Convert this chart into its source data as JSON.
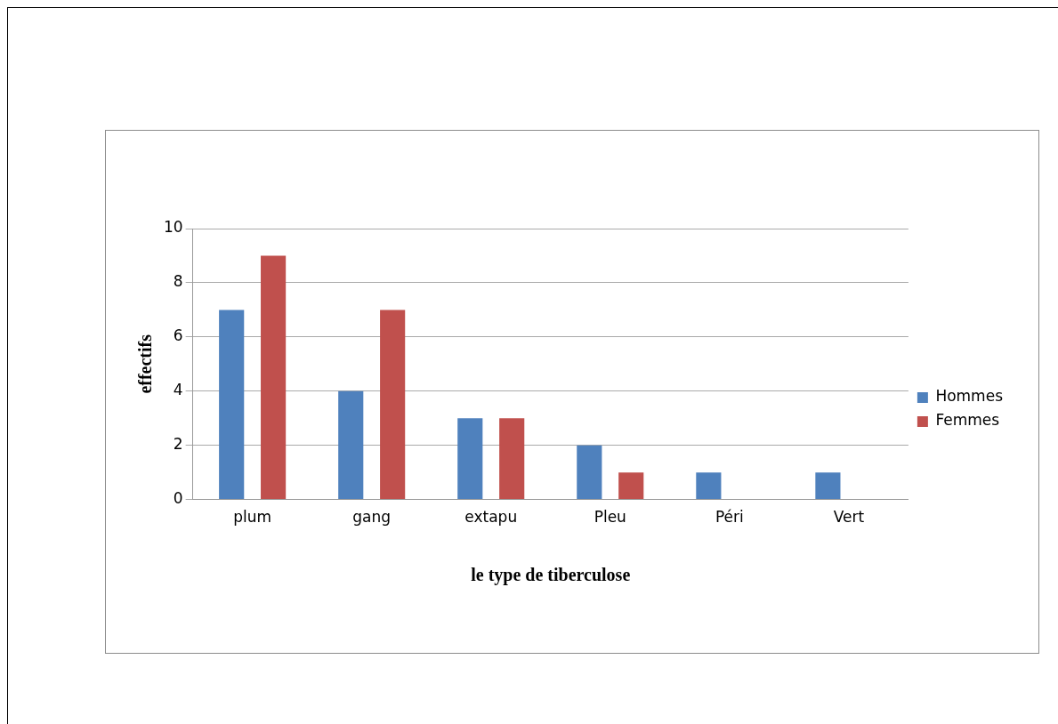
{
  "chart_data": {
    "type": "bar",
    "xlabel": "le type de tiberculose",
    "ylabel": "effectifs",
    "categories": [
      "plum",
      "gang",
      "extapu",
      "Pleu",
      "Péri",
      "Vert"
    ],
    "series": [
      {
        "name": "Hommes",
        "color": "#4f81bd",
        "values": [
          7,
          4,
          3,
          2,
          1,
          1
        ]
      },
      {
        "name": "Femmes",
        "color": "#c0504d",
        "values": [
          9,
          7,
          3,
          1,
          0,
          0
        ]
      }
    ],
    "ylim": [
      0,
      10
    ],
    "yticks": [
      0,
      2,
      4,
      6,
      8,
      10
    ],
    "grid": "y",
    "legend": "right"
  }
}
